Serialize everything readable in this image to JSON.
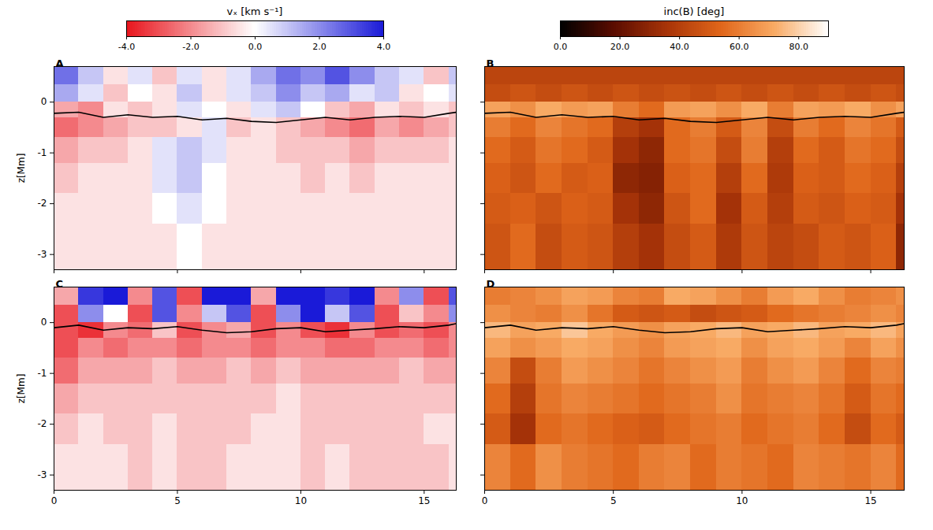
{
  "chart_data": [
    {
      "type": "heatmap",
      "ylabel": "z[Mm]",
      "xlim": [
        0,
        16.3
      ],
      "xticks": [
        0,
        5,
        10,
        15
      ],
      "ylim": [
        -3.3,
        0.7
      ],
      "yticks": [
        -3,
        -2,
        -1,
        0
      ],
      "x_edges": [
        0,
        1,
        2,
        3,
        4,
        5,
        6,
        7,
        8,
        9,
        10,
        11,
        12,
        13,
        14,
        15,
        16,
        16.3
      ],
      "z_edges": [
        0.7,
        0.35,
        0,
        -0.3,
        -0.7,
        -1.2,
        -1.8,
        -2.4,
        -3.3
      ],
      "colorbar": {
        "title": "vₓ [km s⁻¹]",
        "lim": [
          -4,
          4
        ],
        "ticks": [
          {
            "value": -4,
            "label": "-4.0"
          },
          {
            "value": -2,
            "label": "-2.0"
          },
          {
            "value": 0,
            "label": "0.0"
          },
          {
            "value": 2,
            "label": "2.0"
          },
          {
            "value": 4,
            "label": "4.0"
          }
        ],
        "colors": [
          "#e8141c",
          "#ffffff",
          "#1a1ad8"
        ]
      },
      "panels": [
        {
          "label": "A",
          "tick_labels": "y",
          "cells": [
            [
              2.5,
              1,
              -0.5,
              0.5,
              -1,
              0.5,
              -0.5,
              0.5,
              1.5,
              2.5,
              2,
              3,
              2,
              1,
              0.5,
              -1,
              1
            ],
            [
              1.5,
              0.5,
              -1,
              0,
              -0.5,
              1,
              -0.5,
              0.5,
              1,
              2,
              1,
              1.5,
              0.5,
              1,
              -0.5,
              0,
              0.5
            ],
            [
              -1.5,
              -2,
              -0.5,
              -1,
              -0.5,
              0.5,
              0,
              -0.5,
              0.5,
              1,
              0,
              -1,
              -1.5,
              -0.5,
              -1,
              -0.5,
              -1
            ],
            [
              -2.5,
              -2,
              -1.5,
              -1,
              -1,
              -0.5,
              0.5,
              -1,
              -0.5,
              -1,
              -1.5,
              -2,
              -2.5,
              -1.5,
              -2,
              -1.5,
              -1
            ],
            [
              -1.5,
              -1,
              -1,
              -0.5,
              0.5,
              1,
              0.5,
              -0.5,
              -0.5,
              -1,
              -1,
              -1,
              -1.5,
              -1,
              -1,
              -1,
              -0.5
            ],
            [
              -1,
              -0.5,
              -0.5,
              -0.5,
              0.5,
              1,
              0,
              -0.5,
              -0.5,
              -0.5,
              -1,
              -0.5,
              -1,
              -0.5,
              -0.5,
              -0.5,
              -0.5
            ],
            [
              -0.5,
              -0.5,
              -0.5,
              -0.5,
              0,
              0.5,
              0,
              -0.5,
              -0.5,
              -0.5,
              -0.5,
              -0.5,
              -0.5,
              -0.5,
              -0.5,
              -0.5,
              -0.5
            ],
            [
              -0.5,
              -0.5,
              -0.5,
              -0.5,
              -0.5,
              0,
              -0.5,
              -0.5,
              -0.5,
              -0.5,
              -0.5,
              -0.5,
              -0.5,
              -0.5,
              -0.5,
              -0.5,
              -0.5
            ]
          ],
          "line": {
            "color": "#000000",
            "x": [
              0,
              1,
              2,
              3,
              4,
              5,
              6,
              7,
              8,
              9,
              10,
              11,
              12,
              13,
              14,
              15,
              16,
              16.3
            ],
            "z": [
              -0.22,
              -0.2,
              -0.3,
              -0.25,
              -0.3,
              -0.28,
              -0.35,
              -0.32,
              -0.38,
              -0.4,
              -0.35,
              -0.3,
              -0.35,
              -0.3,
              -0.28,
              -0.3,
              -0.22,
              -0.2
            ]
          }
        },
        {
          "label": "C",
          "tick_labels": true,
          "cells": [
            [
              -1.5,
              3.5,
              4,
              -2,
              3,
              -3,
              4,
              4,
              -1.5,
              4,
              4,
              3.5,
              4,
              -2,
              2,
              -3,
              3
            ],
            [
              -3,
              2,
              0,
              -3,
              3,
              -2,
              1,
              3,
              -3,
              2,
              4,
              1,
              3,
              -3,
              -1,
              -2,
              2
            ],
            [
              -3,
              -3.5,
              -2,
              -2.5,
              -1,
              -3,
              -2,
              -1.5,
              -3,
              -2,
              -3,
              -3.5,
              -2,
              -3,
              -2.5,
              -3,
              -2
            ],
            [
              -3,
              -2,
              -2.5,
              -2,
              -2,
              -2.5,
              -2,
              -2,
              -2.5,
              -2,
              -2,
              -2.5,
              -2.5,
              -2,
              -2,
              -2.5,
              -2
            ],
            [
              -2.5,
              -1.5,
              -1.5,
              -1.5,
              -1,
              -1.5,
              -1.5,
              -1,
              -1.5,
              -1,
              -1.5,
              -1.5,
              -1.5,
              -1.5,
              -1,
              -1.5,
              -1.5
            ],
            [
              -1.5,
              -1,
              -1,
              -1,
              -1,
              -1,
              -1,
              -1,
              -1,
              -0.5,
              -1,
              -1,
              -1,
              -1,
              -1,
              -1,
              -1
            ],
            [
              -1,
              -0.5,
              -1,
              -1,
              -0.5,
              -1,
              -1,
              -1,
              -0.5,
              -0.5,
              -1,
              -1,
              -1,
              -1,
              -1,
              -0.5,
              -0.5
            ],
            [
              -0.5,
              -0.5,
              -0.5,
              -1,
              -0.5,
              -1,
              -1,
              -0.5,
              -0.5,
              -0.5,
              -1,
              -0.5,
              -1,
              -1,
              -1,
              -1,
              -0.5
            ]
          ],
          "line": {
            "color": "#000000",
            "x": [
              0,
              1,
              2,
              3,
              4,
              5,
              6,
              7,
              8,
              9,
              10,
              11,
              12,
              13,
              14,
              15,
              16,
              16.3
            ],
            "z": [
              -0.1,
              -0.05,
              -0.15,
              -0.1,
              -0.12,
              -0.08,
              -0.15,
              -0.2,
              -0.18,
              -0.12,
              -0.1,
              -0.18,
              -0.15,
              -0.12,
              -0.08,
              -0.1,
              -0.05,
              -0.02
            ]
          }
        }
      ]
    },
    {
      "type": "heatmap",
      "xlim": [
        0,
        16.3
      ],
      "xticks": [
        0,
        5,
        10,
        15
      ],
      "ylim": [
        -3.3,
        0.7
      ],
      "yticks": [
        -3,
        -2,
        -1,
        0
      ],
      "x_edges": [
        0,
        1,
        2,
        3,
        4,
        5,
        6,
        7,
        8,
        9,
        10,
        11,
        12,
        13,
        14,
        15,
        16,
        16.3
      ],
      "z_edges": [
        0.7,
        0.35,
        0,
        -0.3,
        -0.7,
        -1.2,
        -1.8,
        -2.4,
        -3.3
      ],
      "colorbar": {
        "title": "inc(B) [deg]",
        "lim": [
          0,
          90
        ],
        "ticks": [
          {
            "value": 0,
            "label": "0.0"
          },
          {
            "value": 20,
            "label": "20.0"
          },
          {
            "value": 40,
            "label": "40.0"
          },
          {
            "value": 60,
            "label": "60.0"
          },
          {
            "value": 80,
            "label": "80.0"
          }
        ],
        "colors": [
          "#000000",
          "#5a0c00",
          "#a83408",
          "#e0661a",
          "#f8aa64",
          "#ffffff"
        ]
      },
      "panels": [
        {
          "label": "B",
          "tick_labels": false,
          "cells": [
            [
              42,
              42,
              42,
              42,
              42,
              42,
              42,
              42,
              42,
              42,
              42,
              42,
              42,
              42,
              42,
              42,
              42
            ],
            [
              45,
              48,
              45,
              48,
              45,
              48,
              45,
              47,
              45,
              48,
              45,
              48,
              45,
              48,
              45,
              48,
              45
            ],
            [
              70,
              65,
              72,
              68,
              70,
              60,
              55,
              68,
              70,
              65,
              72,
              60,
              70,
              68,
              72,
              65,
              70
            ],
            [
              60,
              55,
              62,
              58,
              55,
              40,
              35,
              55,
              60,
              50,
              62,
              45,
              60,
              55,
              62,
              58,
              50
            ],
            [
              55,
              50,
              58,
              55,
              50,
              35,
              30,
              55,
              58,
              45,
              60,
              40,
              55,
              50,
              58,
              55,
              45
            ],
            [
              52,
              48,
              55,
              50,
              52,
              30,
              28,
              52,
              55,
              40,
              55,
              38,
              52,
              50,
              55,
              52,
              40
            ],
            [
              50,
              52,
              48,
              52,
              50,
              35,
              30,
              48,
              55,
              35,
              50,
              40,
              50,
              48,
              52,
              50,
              35
            ],
            [
              48,
              55,
              45,
              50,
              48,
              40,
              35,
              45,
              50,
              38,
              48,
              42,
              45,
              50,
              48,
              52,
              30
            ]
          ],
          "line": {
            "color": "#000000",
            "x": [
              0,
              1,
              2,
              3,
              4,
              5,
              6,
              7,
              8,
              9,
              10,
              11,
              12,
              13,
              14,
              15,
              16,
              16.3
            ],
            "z": [
              -0.22,
              -0.2,
              -0.3,
              -0.25,
              -0.3,
              -0.28,
              -0.35,
              -0.32,
              -0.38,
              -0.4,
              -0.35,
              -0.3,
              -0.35,
              -0.3,
              -0.28,
              -0.3,
              -0.22,
              -0.2
            ]
          }
        },
        {
          "label": "D",
          "tick_labels": "x",
          "cells": [
            [
              60,
              62,
              65,
              70,
              68,
              62,
              60,
              72,
              70,
              65,
              60,
              68,
              72,
              65,
              60,
              62,
              65
            ],
            [
              65,
              62,
              60,
              65,
              58,
              50,
              48,
              50,
              45,
              48,
              50,
              55,
              58,
              60,
              62,
              65,
              62
            ],
            [
              75,
              70,
              72,
              78,
              72,
              68,
              65,
              70,
              72,
              75,
              70,
              72,
              75,
              70,
              72,
              75,
              70
            ],
            [
              70,
              65,
              68,
              72,
              70,
              65,
              62,
              68,
              70,
              72,
              65,
              70,
              72,
              68,
              62,
              70,
              65
            ],
            [
              62,
              45,
              60,
              68,
              65,
              62,
              58,
              62,
              65,
              68,
              60,
              65,
              68,
              62,
              55,
              62,
              60
            ],
            [
              55,
              40,
              58,
              62,
              60,
              58,
              55,
              58,
              60,
              65,
              58,
              60,
              62,
              58,
              50,
              58,
              55
            ],
            [
              50,
              35,
              55,
              58,
              55,
              52,
              50,
              55,
              58,
              60,
              55,
              58,
              60,
              55,
              45,
              55,
              50
            ],
            [
              62,
              55,
              65,
              60,
              58,
              55,
              60,
              62,
              55,
              60,
              58,
              55,
              62,
              60,
              58,
              62,
              55
            ]
          ],
          "line": {
            "color": "#000000",
            "x": [
              0,
              1,
              2,
              3,
              4,
              5,
              6,
              7,
              8,
              9,
              10,
              11,
              12,
              13,
              14,
              15,
              16,
              16.3
            ],
            "z": [
              -0.1,
              -0.05,
              -0.15,
              -0.1,
              -0.12,
              -0.08,
              -0.15,
              -0.2,
              -0.18,
              -0.12,
              -0.1,
              -0.18,
              -0.15,
              -0.12,
              -0.08,
              -0.1,
              -0.05,
              -0.02
            ]
          }
        }
      ]
    }
  ]
}
